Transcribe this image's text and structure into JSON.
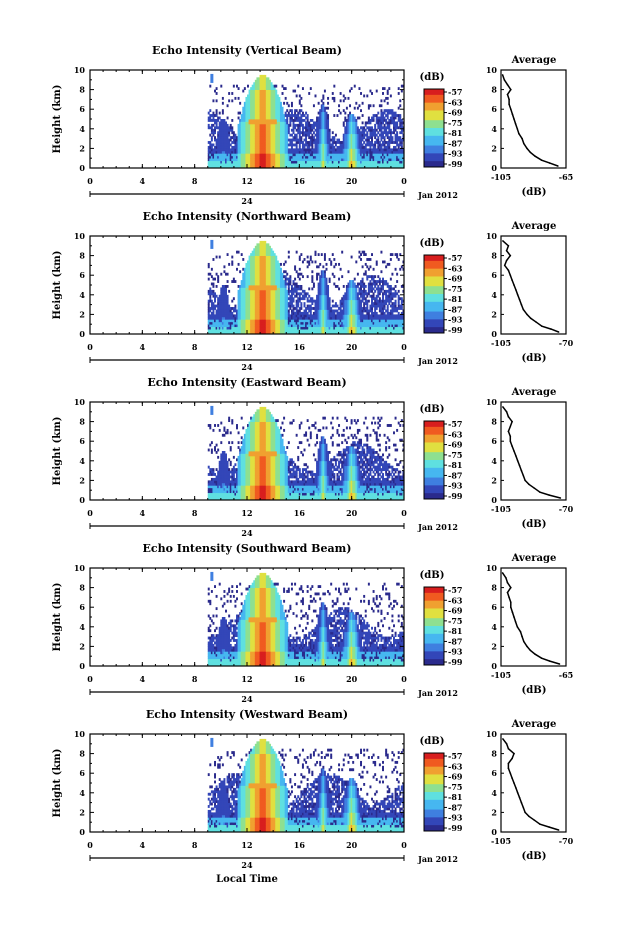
{
  "chart_data": [
    {
      "type": "heatmap",
      "title": "Echo Intensity (Vertical Beam)",
      "ylabel": "Height (km)",
      "xticks": [
        "0",
        "4",
        "8",
        "12",
        "16",
        "20",
        "0"
      ],
      "xlim": [
        0,
        24
      ],
      "ylim": [
        0,
        10
      ],
      "yticks": [
        "0",
        "2",
        "4",
        "6",
        "8",
        "10"
      ],
      "date_marker": "24",
      "date_label": "Jan 2012",
      "colorbar": {
        "unit": "(dB)",
        "ticks": [
          "-57",
          "-63",
          "-69",
          "-75",
          "-81",
          "-87",
          "-93",
          "-99"
        ]
      },
      "profile": {
        "title": "Average",
        "xlabel": "(dB)",
        "xticks": [
          "-105",
          "-65"
        ],
        "xlim": [
          -105,
          -65
        ],
        "heights": [
          0.2,
          0.5,
          0.8,
          1.2,
          1.6,
          2.0,
          2.5,
          3.0,
          3.5,
          4.0,
          4.5,
          5.0,
          5.5,
          6.0,
          6.5,
          7.0,
          7.5,
          8.0,
          8.5,
          9.0,
          9.5
        ],
        "values": [
          -70,
          -75,
          -80,
          -84,
          -87,
          -89,
          -91,
          -92,
          -94,
          -95,
          -96,
          -97,
          -98,
          -99,
          -100,
          -100,
          -101,
          -99,
          -101,
          -103,
          -104
        ]
      }
    },
    {
      "type": "heatmap",
      "title": "Echo Intensity (Northward Beam)",
      "ylabel": "Height (km)",
      "xticks": [
        "0",
        "4",
        "8",
        "12",
        "16",
        "20",
        "0"
      ],
      "xlim": [
        0,
        24
      ],
      "ylim": [
        0,
        10
      ],
      "yticks": [
        "0",
        "2",
        "4",
        "6",
        "8",
        "10"
      ],
      "date_marker": "24",
      "date_label": "Jan 2012",
      "colorbar": {
        "unit": "(dB)",
        "ticks": [
          "-57",
          "-63",
          "-69",
          "-75",
          "-81",
          "-87",
          "-93",
          "-99"
        ]
      },
      "profile": {
        "title": "Average",
        "xlabel": "(dB)",
        "xticks": [
          "-105",
          "-70"
        ],
        "xlim": [
          -105,
          -70
        ],
        "heights": [
          0.2,
          0.5,
          0.8,
          1.2,
          1.6,
          2.0,
          2.5,
          3.0,
          3.5,
          4.0,
          4.5,
          5.0,
          5.5,
          6.0,
          6.5,
          7.0,
          7.5,
          8.0,
          8.5,
          9.0,
          9.5
        ],
        "values": [
          -74,
          -78,
          -83,
          -86,
          -89,
          -91,
          -93,
          -94,
          -95,
          -96,
          -97,
          -98,
          -99,
          -100,
          -101,
          -103,
          -102,
          -100,
          -102,
          -101,
          -104
        ]
      }
    },
    {
      "type": "heatmap",
      "title": "Echo Intensity (Eastward Beam)",
      "ylabel": "Height (km)",
      "xticks": [
        "0",
        "4",
        "8",
        "12",
        "16",
        "20",
        "0"
      ],
      "xlim": [
        0,
        24
      ],
      "ylim": [
        0,
        10
      ],
      "yticks": [
        "0",
        "2",
        "4",
        "6",
        "8",
        "10"
      ],
      "date_marker": "24",
      "date_label": "Jan 2012",
      "colorbar": {
        "unit": "(dB)",
        "ticks": [
          "-57",
          "-63",
          "-69",
          "-75",
          "-81",
          "-87",
          "-93",
          "-99"
        ]
      },
      "profile": {
        "title": "Average",
        "xlabel": "(dB)",
        "xticks": [
          "-105",
          "-70"
        ],
        "xlim": [
          -105,
          -70
        ],
        "heights": [
          0.2,
          0.5,
          0.8,
          1.2,
          1.6,
          2.0,
          2.5,
          3.0,
          3.5,
          4.0,
          4.5,
          5.0,
          5.5,
          6.0,
          6.5,
          7.0,
          7.5,
          8.0,
          8.5,
          9.0,
          9.5
        ],
        "values": [
          -73,
          -79,
          -84,
          -87,
          -90,
          -92,
          -93,
          -94,
          -95,
          -96,
          -97,
          -98,
          -99,
          -100,
          -100,
          -101,
          -100,
          -99,
          -101,
          -102,
          -104
        ]
      }
    },
    {
      "type": "heatmap",
      "title": "Echo Intensity (Southward Beam)",
      "ylabel": "Height (km)",
      "xticks": [
        "0",
        "4",
        "8",
        "12",
        "16",
        "20",
        "0"
      ],
      "xlim": [
        0,
        24
      ],
      "ylim": [
        0,
        10
      ],
      "yticks": [
        "0",
        "2",
        "4",
        "6",
        "8",
        "10"
      ],
      "date_marker": "24",
      "date_label": "Jan 2012",
      "colorbar": {
        "unit": "(dB)",
        "ticks": [
          "-57",
          "-63",
          "-69",
          "-75",
          "-81",
          "-87",
          "-93",
          "-99"
        ]
      },
      "profile": {
        "title": "Average",
        "xlabel": "(dB)",
        "xticks": [
          "-105",
          "-65"
        ],
        "xlim": [
          -105,
          -65
        ],
        "heights": [
          0.2,
          0.5,
          0.8,
          1.2,
          1.6,
          2.0,
          2.5,
          3.0,
          3.5,
          4.0,
          4.5,
          5.0,
          5.5,
          6.0,
          6.5,
          7.0,
          7.5,
          8.0,
          8.5,
          9.0,
          9.5
        ],
        "values": [
          -69,
          -75,
          -80,
          -84,
          -87,
          -89,
          -91,
          -92,
          -93,
          -95,
          -96,
          -97,
          -98,
          -99,
          -99,
          -100,
          -101,
          -99,
          -101,
          -102,
          -104
        ]
      }
    },
    {
      "type": "heatmap",
      "title": "Echo Intensity (Westward Beam)",
      "ylabel": "Height (km)",
      "xlabel": "Local Time",
      "xticks": [
        "0",
        "4",
        "8",
        "12",
        "16",
        "20",
        "0"
      ],
      "xlim": [
        0,
        24
      ],
      "ylim": [
        0,
        10
      ],
      "yticks": [
        "0",
        "2",
        "4",
        "6",
        "8",
        "10"
      ],
      "date_marker": "24",
      "date_label": "Jan 2012",
      "colorbar": {
        "unit": "(dB)",
        "ticks": [
          "-57",
          "-63",
          "-69",
          "-75",
          "-81",
          "-87",
          "-93",
          "-99"
        ]
      },
      "profile": {
        "title": "Average",
        "xlabel": "(dB)",
        "xticks": [
          "-105",
          "-70"
        ],
        "xlim": [
          -105,
          -70
        ],
        "heights": [
          0.2,
          0.5,
          0.8,
          1.2,
          1.6,
          2.0,
          2.5,
          3.0,
          3.5,
          4.0,
          4.5,
          5.0,
          5.5,
          6.0,
          6.5,
          7.0,
          7.5,
          8.0,
          8.5,
          9.0,
          9.5
        ],
        "values": [
          -74,
          -79,
          -84,
          -87,
          -90,
          -92,
          -93,
          -94,
          -95,
          -96,
          -97,
          -98,
          -99,
          -100,
          -101,
          -101,
          -99,
          -98,
          -101,
          -102,
          -104
        ]
      }
    }
  ],
  "colors": {
    "colormap": [
      "#2a2a8c",
      "#3346b8",
      "#3f7fe0",
      "#46b7f0",
      "#5fe0e0",
      "#8ee090",
      "#e0e040",
      "#f0a030",
      "#f05a20",
      "#d81e1e"
    ]
  }
}
